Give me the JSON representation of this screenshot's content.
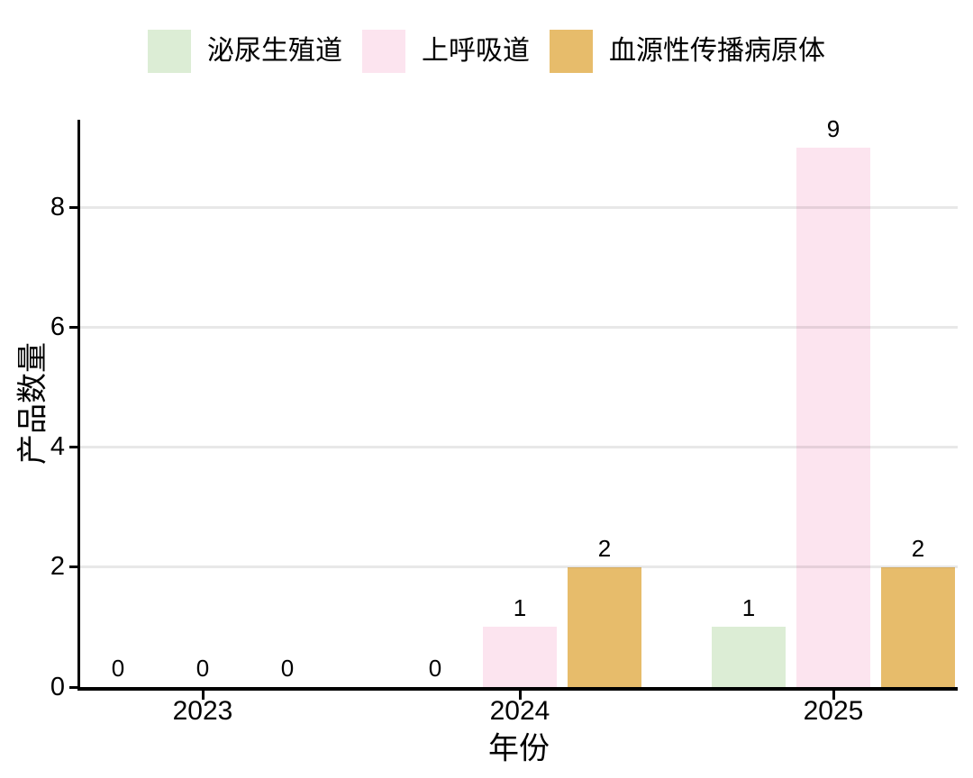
{
  "chart_data": {
    "type": "bar",
    "title": "",
    "xlabel": "年份",
    "ylabel": "产品数量",
    "categories": [
      "2023",
      "2024",
      "2025"
    ],
    "series": [
      {
        "name": "泌尿生殖道",
        "color": "#dcedd5",
        "values": [
          0,
          0,
          1
        ]
      },
      {
        "name": "上呼吸道",
        "color": "#fce4ef",
        "values": [
          0,
          1,
          9
        ]
      },
      {
        "name": "血源性传播病原体",
        "color": "#e7bc6b",
        "values": [
          0,
          2,
          2
        ]
      }
    ],
    "yticks": [
      0,
      2,
      4,
      6,
      8
    ],
    "ylim": [
      0,
      9.5
    ],
    "grid": "horizontal-major-only",
    "legend_position": "top",
    "bar_value_labels": true
  },
  "colors": {
    "background": "#ffffff",
    "axis": "#000000",
    "gridline": "#e8e8e8",
    "text": "#000000"
  }
}
